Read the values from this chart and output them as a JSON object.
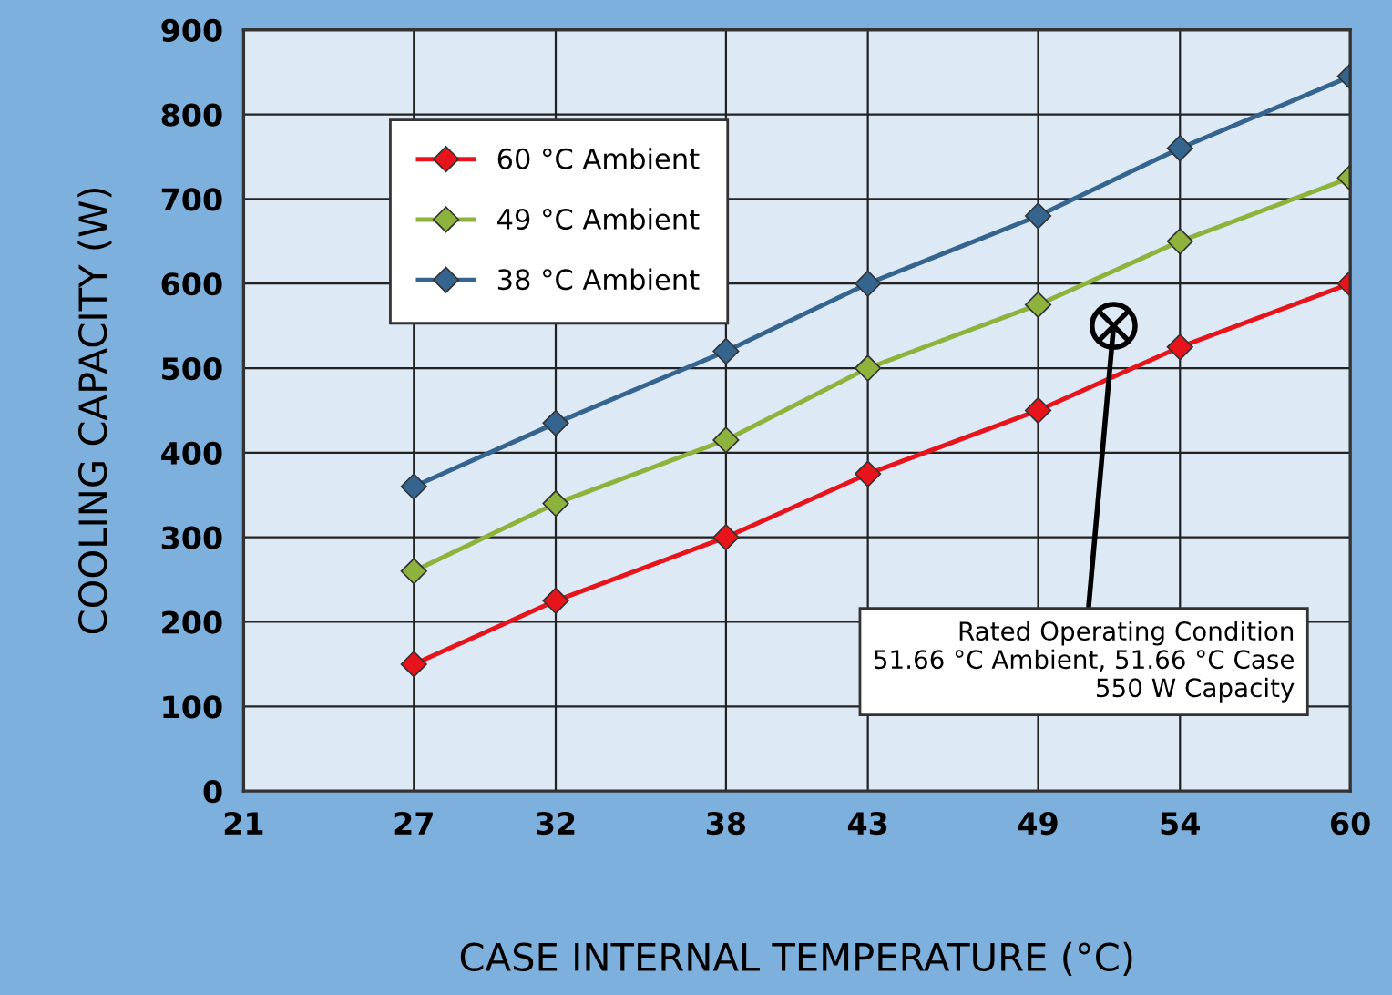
{
  "chart_data": {
    "type": "line",
    "xlabel": "CASE INTERNAL TEMPERATURE (°C)",
    "ylabel": "COOLING CAPACITY (W)",
    "x": [
      27,
      32,
      38,
      43,
      49,
      54,
      60
    ],
    "series": [
      {
        "name": "60 °C Ambient",
        "color": "#e8141b",
        "values": [
          150,
          225,
          300,
          375,
          450,
          525,
          600
        ]
      },
      {
        "name": "49 °C Ambient",
        "color": "#8db33c",
        "values": [
          260,
          340,
          415,
          500,
          575,
          650,
          725
        ]
      },
      {
        "name": "38 °C Ambient",
        "color": "#35658f",
        "values": [
          360,
          435,
          520,
          600,
          680,
          760,
          845
        ]
      }
    ],
    "xlim": [
      21,
      60
    ],
    "xticks": [
      21,
      27,
      32,
      38,
      43,
      49,
      54,
      60
    ],
    "ylim": [
      0,
      900
    ],
    "yticks": [
      0,
      100,
      200,
      300,
      400,
      500,
      600,
      700,
      800,
      900
    ],
    "grid": true,
    "legend": "top left",
    "marker": "diamond",
    "line_style": "solid",
    "annotations": [
      {
        "text": "Rated Operating Condition\n51.66 °C Ambient, 51.66 °C Case\n550 W Capacity",
        "x": 51.66,
        "y": 550
      }
    ]
  }
}
